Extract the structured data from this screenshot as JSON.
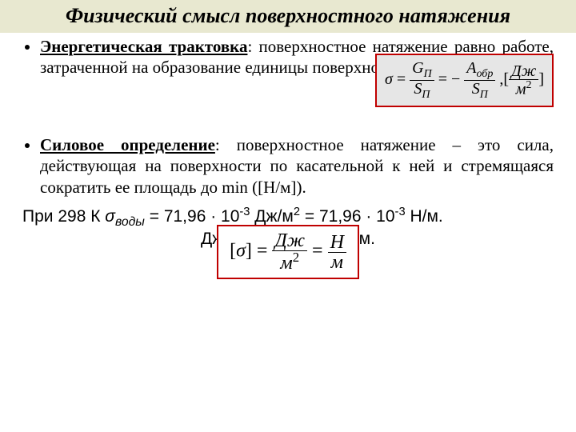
{
  "title": "Физический смысл поверхностного натяжения",
  "bullet1": {
    "lead": "Энергетическая трактовка",
    "text": ": поверхностное натяжение равно работе, затраченной на образование единицы поверхности:"
  },
  "formula1": {
    "sigma": "σ",
    "eq": "=",
    "g_n": "G",
    "g_sub": "П",
    "s_n": "S",
    "s_sub": "П",
    "minus": "= −",
    "a_n": "A",
    "a_sub": "обр",
    "comma": ",",
    "lb": "[",
    "j": "Дж",
    "m2": "м",
    "sq": "2",
    "rb": "]"
  },
  "bullet2": {
    "lead": "Силовое определение",
    "text": ": поверхностное натяжение – это сила, действующая на поверхности по касательной к ней и стремящаяся сократить ее площадь до min ([Н/м])."
  },
  "water": {
    "pre": "При 298 К ",
    "sigma": "σ",
    "sub": "воды",
    "rest": " = 71,96 · 10",
    "exp": "-3",
    "u1": " Дж/м",
    "sq": "2",
    "mid": " = 71,96 · 10",
    "u2": " Н/м."
  },
  "overlap": "Дж/м2 = Н·м/м2 = Н/м.",
  "formula2": {
    "lb": "[",
    "sigma": "σ",
    "rb": "]",
    "eq": " = ",
    "j": "Дж",
    "m": "м",
    "sq": "2",
    "eq2": " = ",
    "n": "Н"
  },
  "colors": {
    "header_bg": "#e8e8d0",
    "border": "#c00000",
    "fill1": "#e6e6e6"
  }
}
